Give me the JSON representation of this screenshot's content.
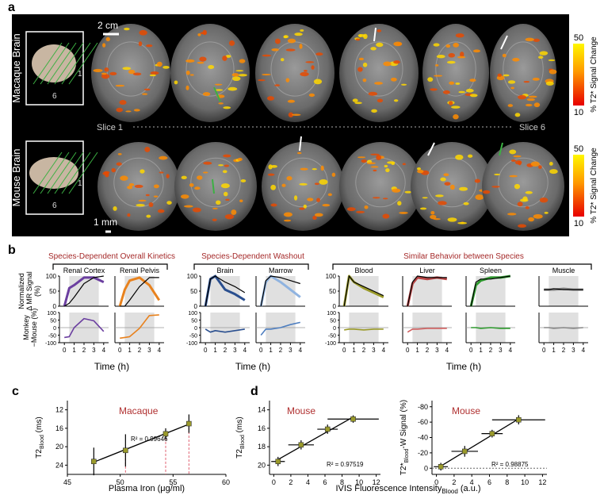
{
  "panel_a": {
    "label": "a",
    "rows": [
      "Macaque Brain",
      "Mouse Brain"
    ],
    "scale_bars": [
      "2 cm",
      "1 mm"
    ],
    "slice_start": "Slice 1",
    "slice_end": "Slice 6",
    "inset_labels": [
      "1",
      "6"
    ],
    "colorbar": {
      "max": 50,
      "min": 10,
      "label": "% T2* Signal Change"
    }
  },
  "chart_data": [
    {
      "type": "line-grid",
      "panel_label": "b",
      "ylabel_top": [
        "Normalized",
        "Δ MR Signal",
        "(%)"
      ],
      "ylabel_bottom": [
        "Monkey",
        "−Mouse (%)"
      ],
      "x": [
        0,
        0.5,
        1,
        2,
        3,
        4
      ],
      "xlim": [
        -0.5,
        4.5
      ],
      "xticks": [
        0,
        1,
        2,
        3,
        4
      ],
      "ylim": [
        0,
        100
      ],
      "yticks": [
        0,
        50,
        100
      ],
      "y2lim": [
        -100,
        100
      ],
      "y2ticks": [
        -100,
        -50,
        0,
        50,
        100
      ],
      "groups": [
        {
          "title": "Species-Dependent Overall Kinetics",
          "xlabel": "Time (h)",
          "plots": [
            {
              "name": "Renal Cortex",
              "series": [
                {
                  "color": "#6b3fa0",
                  "values": [
                    0,
                    60,
                    70,
                    95,
                    95,
                    80
                  ]
                },
                {
                  "color": "#000000",
                  "values": [
                    0,
                    10,
                    30,
                    75,
                    95,
                    100
                  ]
                },
                {
                  "color": "#6b3fa0",
                  "axis": "y2",
                  "values": [
                    -65,
                    -60,
                    0,
                    60,
                    45,
                    -25
                  ]
                }
              ]
            },
            {
              "name": "Renal Pelvis",
              "series": [
                {
                  "color": "#e8821e",
                  "values": [
                    0,
                    55,
                    85,
                    95,
                    70,
                    20
                  ]
                },
                {
                  "color": "#000000",
                  "values": [
                    0,
                    0,
                    20,
                    65,
                    95,
                    95
                  ]
                },
                {
                  "color": "#e8821e",
                  "axis": "y2",
                  "values": [
                    -70,
                    -65,
                    -60,
                    -5,
                    80,
                    85
                  ]
                }
              ]
            }
          ]
        },
        {
          "title": "Species-Dependent Washout",
          "xlabel": "Time (h)",
          "plots": [
            {
              "name": "Brain",
              "series": [
                {
                  "color": "#2a4f8f",
                  "values": [
                    0,
                    90,
                    100,
                    55,
                    40,
                    20
                  ]
                },
                {
                  "color": "#000000",
                  "values": [
                    0,
                    90,
                    100,
                    80,
                    65,
                    45
                  ]
                },
                {
                  "color": "#2a4f8f",
                  "axis": "y2",
                  "values": [
                    -10,
                    -30,
                    -20,
                    -30,
                    -20,
                    -10
                  ]
                }
              ]
            },
            {
              "name": "Marrow",
              "series": [
                {
                  "color": "#8fb3e0",
                  "values": [
                    0,
                    80,
                    100,
                    80,
                    55,
                    30
                  ]
                },
                {
                  "color": "#000000",
                  "values": [
                    0,
                    85,
                    100,
                    95,
                    85,
                    75
                  ]
                },
                {
                  "color": "#4f7fc0",
                  "axis": "y2",
                  "values": [
                    -50,
                    -10,
                    -10,
                    0,
                    20,
                    35
                  ]
                }
              ]
            }
          ]
        },
        {
          "title": "Similar Behavior between Species",
          "xlabel": "Time (h)",
          "plots": [
            {
              "name": "Blood",
              "series": [
                {
                  "color": "#9a9a2a",
                  "values": [
                    0,
                    100,
                    80,
                    60,
                    45,
                    30
                  ]
                },
                {
                  "color": "#000000",
                  "values": [
                    0,
                    100,
                    80,
                    65,
                    50,
                    35
                  ]
                },
                {
                  "color": "#9a9a2a",
                  "axis": "y2",
                  "values": [
                    -15,
                    -10,
                    -10,
                    -15,
                    -10,
                    -10
                  ]
                }
              ]
            },
            {
              "name": "Liver",
              "series": [
                {
                  "color": "#b84545",
                  "values": [
                    0,
                    75,
                    95,
                    90,
                    95,
                    90
                  ]
                },
                {
                  "color": "#000000",
                  "values": [
                    0,
                    80,
                    100,
                    95,
                    95,
                    95
                  ]
                },
                {
                  "color": "#d06060",
                  "axis": "y2",
                  "values": [
                    -30,
                    -10,
                    -10,
                    -5,
                    -5,
                    -5
                  ]
                }
              ]
            },
            {
              "name": "Spleen",
              "series": [
                {
                  "color": "#2e9a2e",
                  "values": [
                    0,
                    70,
                    85,
                    95,
                    95,
                    100
                  ]
                },
                {
                  "color": "#000000",
                  "values": [
                    0,
                    80,
                    90,
                    90,
                    95,
                    100
                  ]
                },
                {
                  "color": "#2e9a2e",
                  "axis": "y2",
                  "values": [
                    0,
                    0,
                    -5,
                    0,
                    -5,
                    -5
                  ]
                }
              ]
            },
            {
              "name": "Muscle",
              "series": [
                {
                  "color": "#888888",
                  "values": [
                    55,
                    55,
                    55,
                    58,
                    55,
                    55
                  ]
                },
                {
                  "color": "#000000",
                  "values": [
                    55,
                    55,
                    58,
                    55,
                    55,
                    55
                  ]
                },
                {
                  "color": "#888888",
                  "axis": "y2",
                  "values": [
                    0,
                    0,
                    -5,
                    0,
                    -5,
                    0
                  ]
                }
              ]
            }
          ]
        }
      ]
    },
    {
      "type": "scatter",
      "panel_label": "c",
      "title": "Macaque",
      "title_color": "#b03030",
      "xlabel": "Plasma Iron (μg/ml)",
      "ylabel": [
        "T2",
        "Blood",
        " (ms)"
      ],
      "color": "#9a9a2a",
      "x": [
        47.5,
        50.5,
        54.3,
        56.5
      ],
      "values": [
        23.2,
        20.8,
        17.2,
        15.0
      ],
      "yerr": [
        3.0,
        3.5,
        1.2,
        2.0
      ],
      "guide": [
        false,
        true,
        true,
        true
      ],
      "guide_color": "#e06070",
      "xlim": [
        45,
        60
      ],
      "xticks": [
        45,
        50,
        55,
        60
      ],
      "ylim": [
        10,
        26
      ],
      "yticks": [
        12,
        16,
        20,
        24
      ],
      "y_inverted": true,
      "r2_label": "R² = 0.99646"
    },
    {
      "type": "scatter",
      "panel_label": "d",
      "title": "Mouse",
      "title_color": "#b03030",
      "xlabel": "IVIS Fluorescence Intensity",
      "xlabel_sub": "Blood",
      "xlabel_end": " (a.u.)",
      "ylabel": [
        "T2",
        "Blood",
        " (ms)"
      ],
      "color": "#9a9a2a",
      "x": [
        0.5,
        3.2,
        6.3,
        9.3
      ],
      "values": [
        19.6,
        17.8,
        16.1,
        15.0
      ],
      "yerr": [
        0.5,
        0.5,
        0.5,
        0.4
      ],
      "xerr": [
        0.8,
        1.5,
        1.2,
        3.0
      ],
      "xlim": [
        -0.5,
        12.5
      ],
      "xticks": [
        0,
        2,
        4,
        6,
        8,
        10,
        12
      ],
      "ylim": [
        13,
        21
      ],
      "yticks": [
        14,
        16,
        18,
        20
      ],
      "y_inverted": true,
      "r2_label": "R² = 0.97519"
    },
    {
      "type": "scatter",
      "title": "Mouse",
      "title_color": "#b03030",
      "ylabel": [
        "T2*",
        "Blood",
        "-W Signal (%)"
      ],
      "color": "#9a9a2a",
      "x": [
        0.5,
        3.2,
        6.3,
        9.3
      ],
      "values": [
        -2,
        -22,
        -45,
        -63
      ],
      "yerr": [
        5,
        7,
        5,
        6
      ],
      "xerr": [
        0.8,
        1.5,
        1.2,
        3.0
      ],
      "xlim": [
        -0.5,
        12.5
      ],
      "xticks": [
        0,
        2,
        4,
        6,
        8,
        10,
        12
      ],
      "ylim": [
        -88,
        8
      ],
      "yticks": [
        0,
        -20,
        -40,
        -60,
        -80
      ],
      "y_inverted": true,
      "zero_line": true,
      "r2_label": "R² = 0.98875"
    }
  ]
}
